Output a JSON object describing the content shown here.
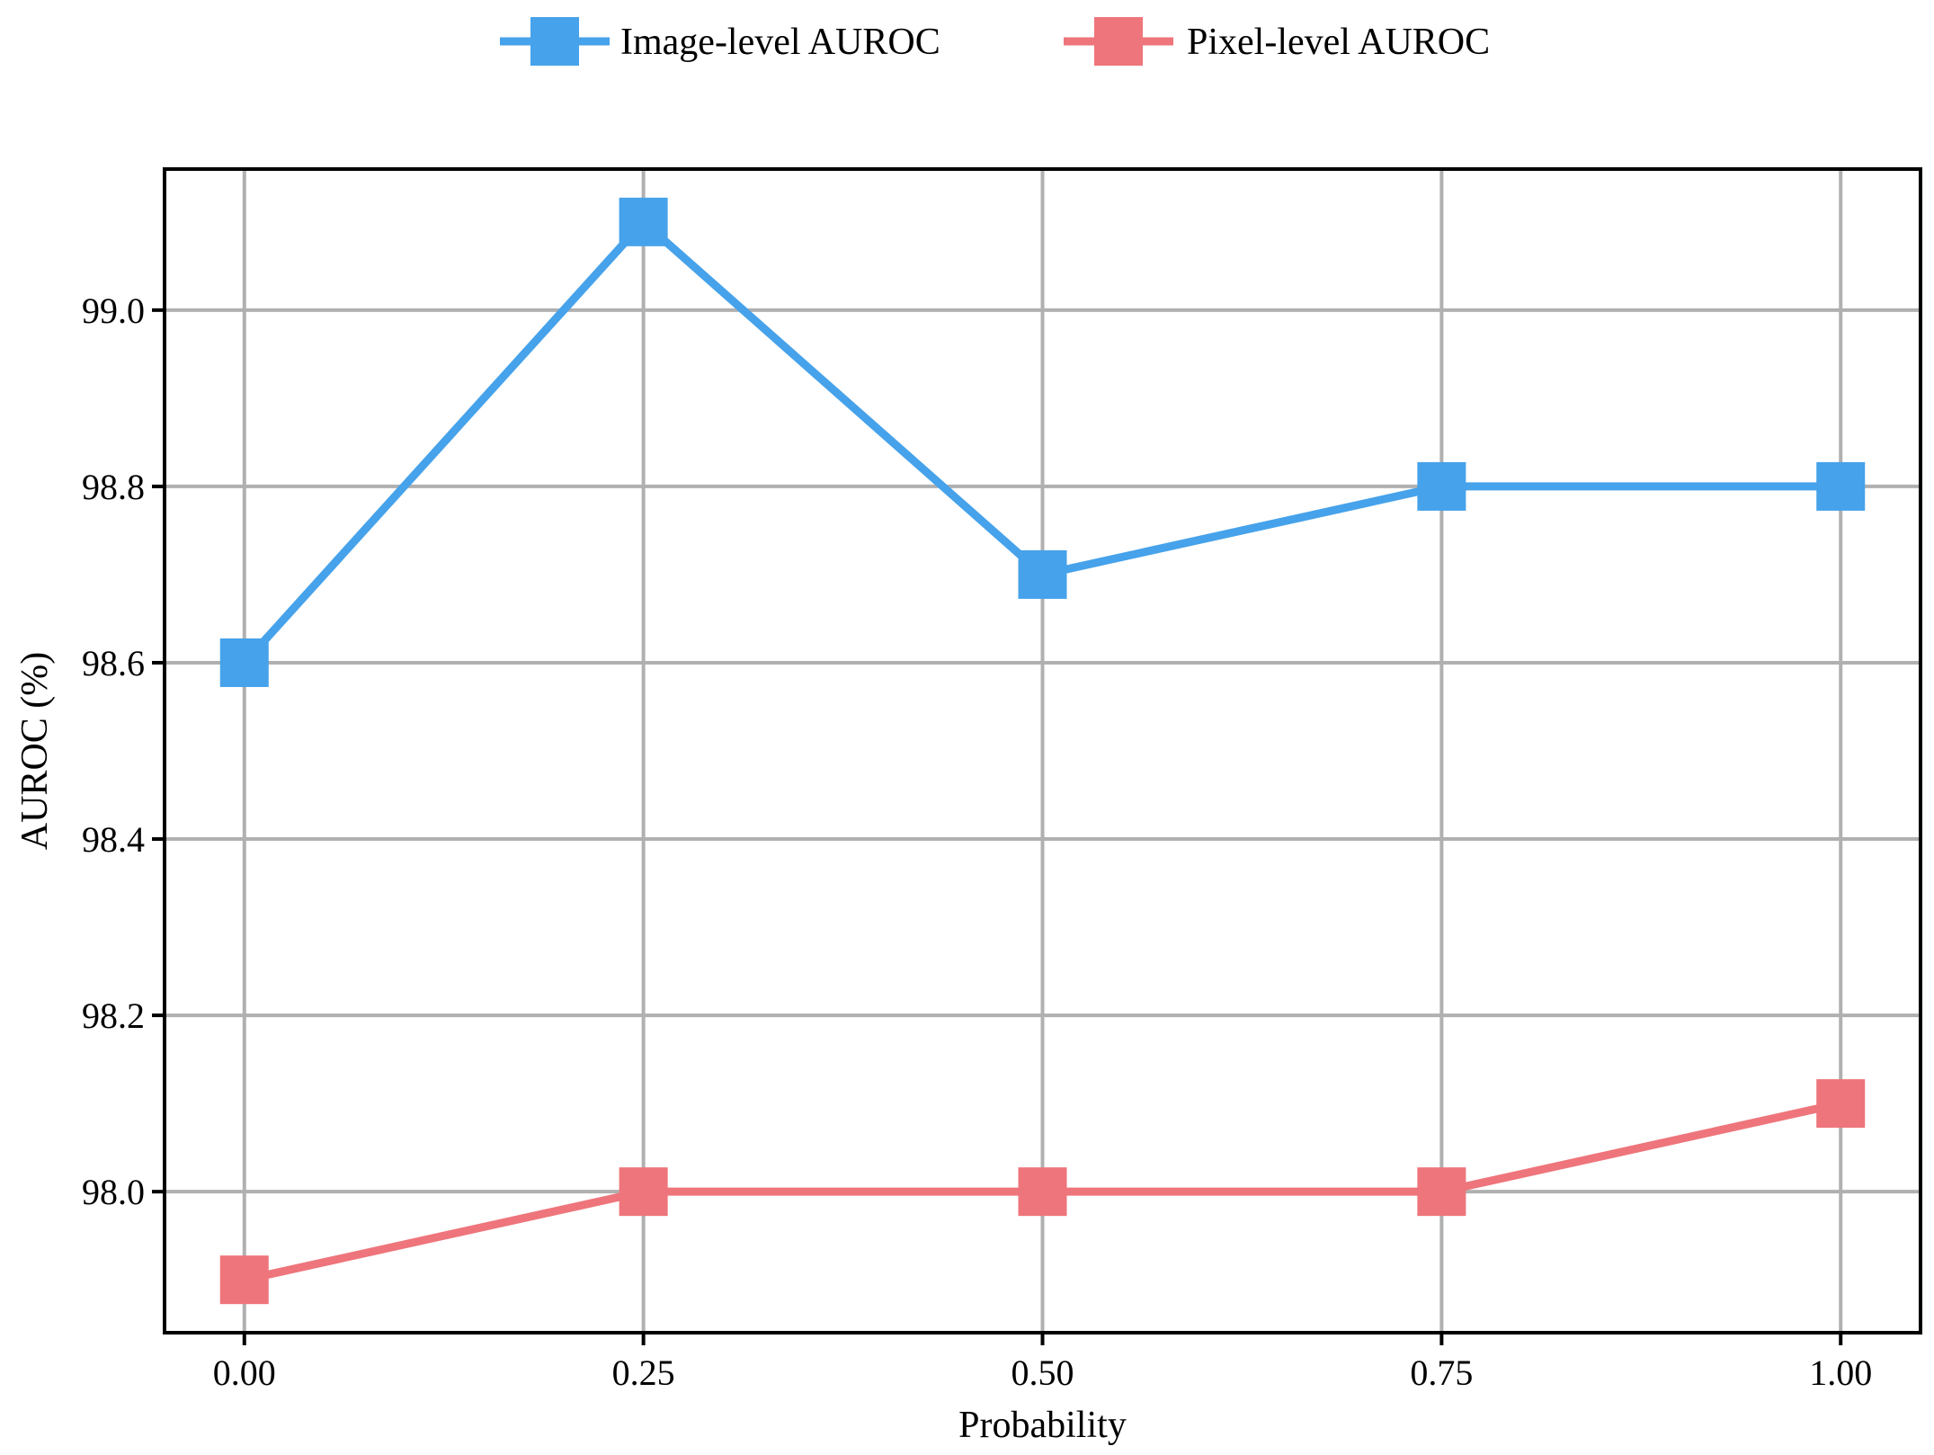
{
  "chart_data": {
    "type": "line",
    "title": "",
    "xlabel": "Probability",
    "ylabel": "AUROC (%)",
    "x": [
      0.0,
      0.25,
      0.5,
      0.75,
      1.0
    ],
    "x_tick_labels": [
      "0.00",
      "0.25",
      "0.50",
      "0.75",
      "1.00"
    ],
    "y_ticks": [
      98.0,
      98.2,
      98.4,
      98.6,
      98.8,
      99.0
    ],
    "y_tick_labels": [
      "98.0",
      "98.2",
      "98.4",
      "98.6",
      "98.8",
      "99.0"
    ],
    "xlim": [
      -0.05,
      1.05
    ],
    "ylim": [
      97.84,
      99.16
    ],
    "grid": true,
    "legend_position": "top-center",
    "series": [
      {
        "name": "Image-level AUROC",
        "color": "#46A2EA",
        "marker": "square",
        "values": [
          98.6,
          99.1,
          98.7,
          98.8,
          98.8
        ]
      },
      {
        "name": "Pixel-level AUROC",
        "color": "#EE757B",
        "marker": "square",
        "values": [
          97.9,
          98.0,
          98.0,
          98.0,
          98.1
        ]
      }
    ]
  }
}
